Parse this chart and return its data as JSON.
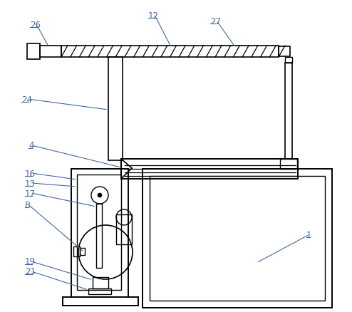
{
  "bg_color": "#ffffff",
  "line_color": "#000000",
  "fig_width": 4.94,
  "fig_height": 4.39,
  "dpi": 100
}
